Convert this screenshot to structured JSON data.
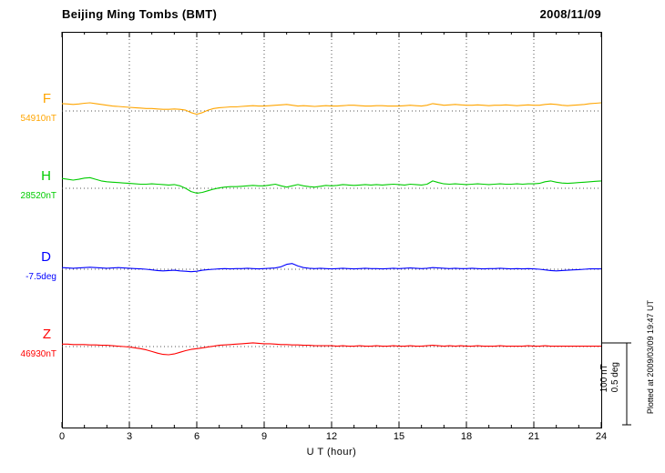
{
  "header": {
    "title": "Beijing Ming Tombs (BMT)",
    "date": "2008/11/09"
  },
  "chart_data": {
    "type": "line",
    "title": "Beijing Ming Tombs (BMT)",
    "date": "2008/11/09",
    "xlabel": "U T (hour)",
    "xlim": [
      0,
      24
    ],
    "x_ticks": [
      0,
      3,
      6,
      9,
      12,
      15,
      18,
      21,
      24
    ],
    "grid": "dotted vertical gridlines every 3 hours; dotted horizontal baseline per trace",
    "legend_position": "left margin, one colored label per trace",
    "sampling": "values are offsets from each trace baseline, evenly spaced from 0 to 24 h",
    "scale_bar": {
      "lines": [
        "100 nT",
        "0.5 deg"
      ]
    },
    "footnote": "Plotted at 2009/03/09 19:47 UT",
    "series": [
      {
        "name": "F",
        "baseline_label": "54910nT",
        "unit": "nT",
        "color": "#FFA500",
        "values": [
          9,
          8.5,
          8,
          8.5,
          9.5,
          10,
          9,
          8,
          7,
          6,
          5.5,
          5,
          4.5,
          4,
          3.5,
          3,
          3,
          2.5,
          2,
          2,
          2.5,
          2,
          1,
          -2,
          -4,
          -2,
          1,
          3,
          4,
          4.5,
          5,
          5,
          5.5,
          6,
          6.5,
          6,
          6,
          6.5,
          7,
          7.5,
          8,
          7,
          6,
          6.5,
          6,
          5.5,
          6,
          6.5,
          6,
          6,
          6.5,
          7,
          7,
          6.5,
          6,
          6,
          6.5,
          6.5,
          6,
          6,
          6,
          6.5,
          7,
          6.5,
          6,
          7,
          9,
          8,
          7,
          7.5,
          8,
          7.5,
          7,
          7,
          7.5,
          7,
          6.5,
          7,
          7,
          7.5,
          7,
          6.5,
          7,
          7.5,
          7,
          7,
          8,
          8.5,
          8,
          7,
          6.5,
          7,
          7.5,
          8,
          9,
          9.5,
          10
        ]
      },
      {
        "name": "H",
        "baseline_label": "28520nT",
        "unit": "nT",
        "color": "#00CC00",
        "values": [
          12,
          11,
          10,
          11,
          12.5,
          13,
          11,
          9,
          8,
          7.5,
          7,
          6.5,
          6,
          5.5,
          5,
          5,
          5.5,
          5,
          4.5,
          4,
          4.5,
          3,
          0,
          -4,
          -6,
          -5,
          -3,
          -1,
          0.5,
          1.5,
          2,
          2,
          2.5,
          3,
          3.5,
          3,
          3,
          4,
          5,
          3,
          1.5,
          3,
          4.5,
          3,
          2,
          1.5,
          2.5,
          3.5,
          3,
          3.5,
          4.5,
          4,
          3.5,
          4,
          4.5,
          4,
          4.5,
          4,
          4.5,
          5,
          4.5,
          4,
          5,
          4.5,
          4,
          5,
          9,
          7,
          5.5,
          5,
          5.5,
          5,
          4.5,
          5,
          5.5,
          5,
          4.5,
          5,
          5.5,
          5,
          5,
          5.5,
          5,
          5.5,
          5.5,
          6,
          8,
          9,
          7.5,
          6.5,
          6,
          6.5,
          7,
          7.5,
          8,
          8.5,
          9
        ]
      },
      {
        "name": "D",
        "baseline_label": "-7.5deg",
        "unit": "deg",
        "color": "#0000FF",
        "values": [
          0.01,
          0.008,
          0.006,
          0.008,
          0.01,
          0.012,
          0.01,
          0.008,
          0.006,
          0.008,
          0.01,
          0.008,
          0.006,
          0.004,
          0.002,
          0,
          -0.004,
          -0.008,
          -0.01,
          -0.008,
          -0.006,
          -0.01,
          -0.012,
          -0.015,
          -0.012,
          -0.006,
          -0.002,
          0,
          0.002,
          0.004,
          0.002,
          0.004,
          0.004,
          0.006,
          0.004,
          0.002,
          0.004,
          0.006,
          0.008,
          0.015,
          0.03,
          0.035,
          0.02,
          0.01,
          0.006,
          0.004,
          0.006,
          0.004,
          0.002,
          0.004,
          0.006,
          0.004,
          0.002,
          0.004,
          0.006,
          0.004,
          0.004,
          0.002,
          0.004,
          0.006,
          0.004,
          0.006,
          0.008,
          0.006,
          0.004,
          0.006,
          0.01,
          0.008,
          0.006,
          0.004,
          0.006,
          0.004,
          0.004,
          0.006,
          0.004,
          0.002,
          0.004,
          0.004,
          0.006,
          0.004,
          0.002,
          0.004,
          0.002,
          0.004,
          0.002,
          0,
          -0.004,
          -0.008,
          -0.01,
          -0.008,
          -0.006,
          -0.004,
          -0.002,
          0,
          0.002,
          0.002,
          0.002
        ]
      },
      {
        "name": "Z",
        "baseline_label": "46930nT",
        "unit": "nT",
        "color": "#FF0000",
        "values": [
          3,
          3,
          2.5,
          2.5,
          2.5,
          2,
          2,
          1.5,
          1.5,
          1,
          0.5,
          0,
          -0.5,
          -1.5,
          -2.5,
          -4,
          -6,
          -8,
          -9.5,
          -10,
          -9,
          -7,
          -5,
          -3.5,
          -2.5,
          -1.5,
          -0.5,
          0.5,
          1.5,
          2,
          2.5,
          3,
          3.5,
          4,
          4.5,
          4,
          3.5,
          3.5,
          3,
          2.5,
          2.5,
          2,
          2,
          1.5,
          1.5,
          1,
          1,
          1,
          1,
          0.5,
          1,
          0.5,
          0.5,
          1,
          0.5,
          0.5,
          1,
          0.5,
          0.5,
          1,
          0.5,
          0.5,
          1,
          0.5,
          0.5,
          1,
          1.5,
          1,
          0.5,
          1,
          0.5,
          1,
          0.5,
          0.5,
          1,
          0.5,
          0.5,
          0.5,
          1,
          0.5,
          0.5,
          0.5,
          0.5,
          1,
          0.5,
          0.5,
          1,
          0.5,
          0.5,
          0.5,
          0.5,
          0.5,
          0.5,
          0.5,
          0.5,
          0.5,
          0.5
        ]
      }
    ]
  }
}
